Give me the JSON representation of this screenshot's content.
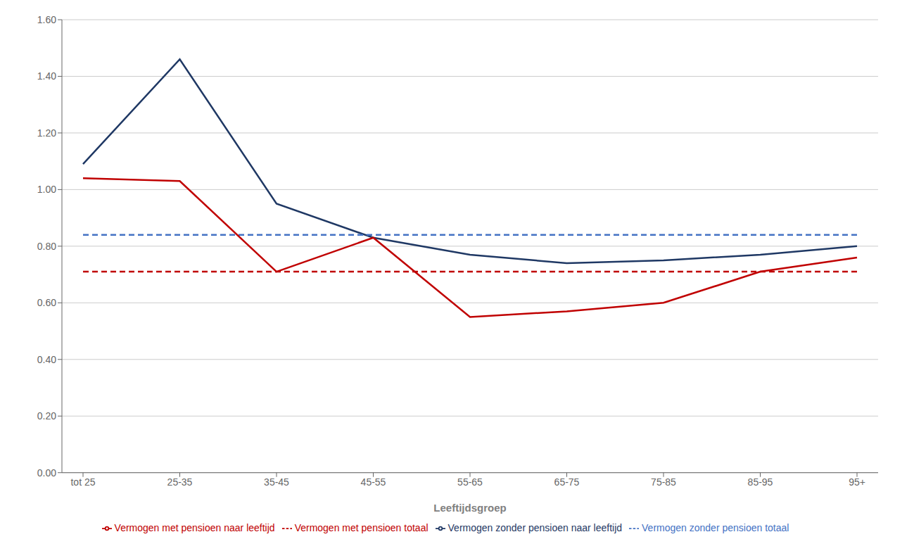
{
  "chart_data": {
    "type": "line",
    "xlabel": "Leeftijdsgroep",
    "categories": [
      "tot 25",
      "25-35",
      "35-45",
      "45-55",
      "55-65",
      "65-75",
      "75-85",
      "85-95",
      "95+"
    ],
    "series": [
      {
        "name": "Vermogen zonder pensioen naar leeftijd",
        "color": "#1F3864",
        "line_style": "solid",
        "values": [
          1.09,
          1.46,
          0.95,
          0.83,
          0.77,
          0.74,
          0.75,
          0.77,
          0.8
        ]
      },
      {
        "name": "Vermogen zonder pensioen totaal",
        "color": "#4472C4",
        "line_style": "dashed",
        "values": [
          0.84,
          0.84,
          0.84,
          0.84,
          0.84,
          0.84,
          0.84,
          0.84,
          0.84
        ]
      },
      {
        "name": "Vermogen met pensioen naar leeftijd",
        "color": "#C00000",
        "line_style": "solid",
        "values": [
          1.04,
          1.03,
          0.71,
          0.83,
          0.55,
          0.57,
          0.6,
          0.71,
          0.76
        ]
      },
      {
        "name": "Vermogen met pensioen totaal",
        "color": "#C00000",
        "line_style": "dashed",
        "values": [
          0.71,
          0.71,
          0.71,
          0.71,
          0.71,
          0.71,
          0.71,
          0.71,
          0.71
        ]
      }
    ],
    "ylim": [
      0.0,
      1.6
    ],
    "yticks": [
      {
        "value": 0.0,
        "label": "0.00"
      },
      {
        "value": 0.2,
        "label": "0.20"
      },
      {
        "value": 0.4,
        "label": "0.40"
      },
      {
        "value": 0.6,
        "label": "0.60"
      },
      {
        "value": 0.8,
        "label": "0.80"
      },
      {
        "value": 1.0,
        "label": "1.00"
      },
      {
        "value": 1.2,
        "label": "1.20"
      },
      {
        "value": 1.4,
        "label": "1.40"
      },
      {
        "value": 1.6,
        "label": "1.60"
      }
    ],
    "grid": true,
    "legend": "bottom"
  }
}
